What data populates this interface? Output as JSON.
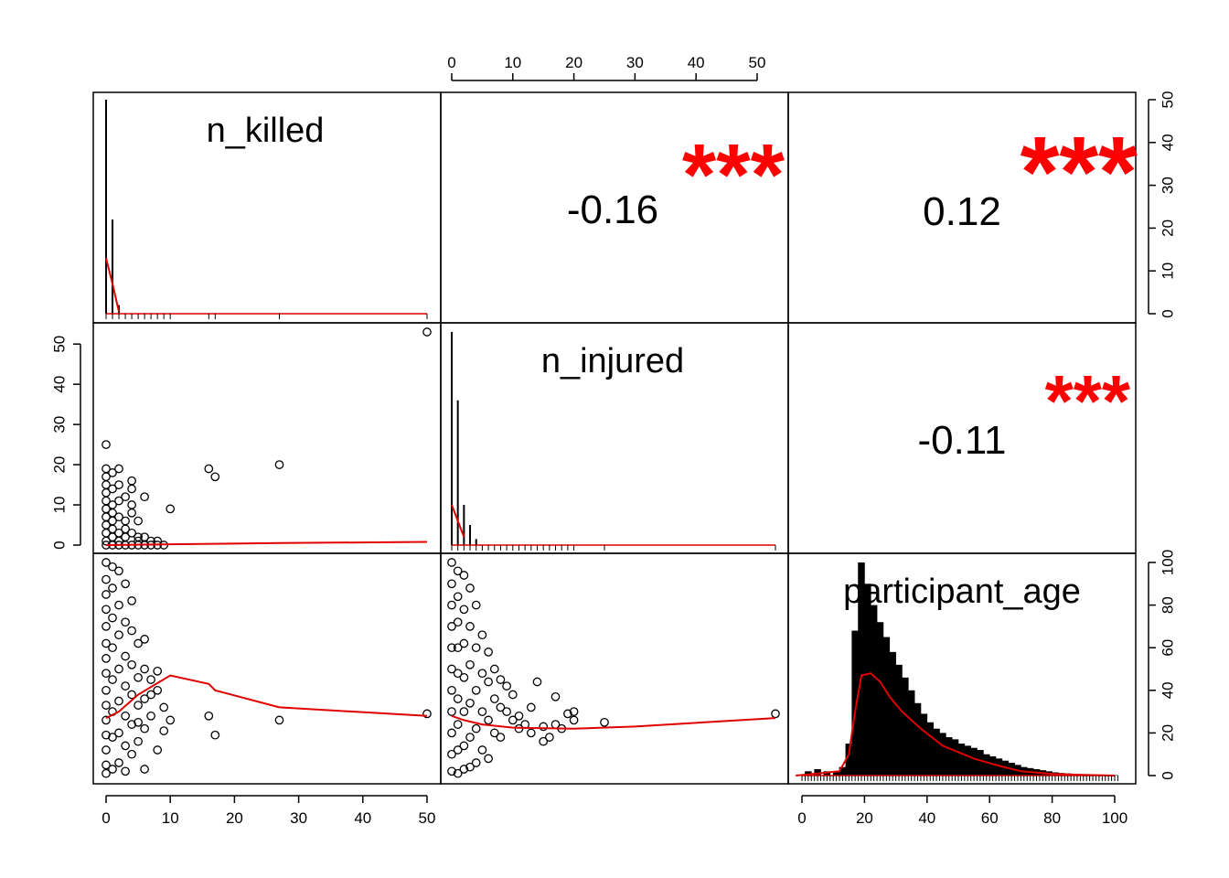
{
  "chart_data": {
    "type": "scatter",
    "variables": [
      "n_killed",
      "n_injured",
      "participant_age"
    ],
    "diagonal_labels": [
      "n_killed",
      "n_injured",
      "participant_age"
    ],
    "colors": {
      "line": "#e00000",
      "stars": "#ff0000",
      "points": "#000000"
    },
    "axes": {
      "n_killed": {
        "ticks": [
          "0",
          "10",
          "20",
          "30",
          "40",
          "50"
        ],
        "range": [
          0,
          50
        ]
      },
      "n_injured": {
        "ticks": [
          "0",
          "10",
          "20",
          "30",
          "40",
          "50"
        ],
        "range": [
          0,
          53
        ]
      },
      "participant_age": {
        "ticks": [
          "0",
          "20",
          "40",
          "60",
          "80",
          "100"
        ],
        "range": [
          0,
          100
        ]
      }
    },
    "correlations": [
      {
        "pair": [
          "n_killed",
          "n_injured"
        ],
        "value": "-0.16",
        "stars": "***"
      },
      {
        "pair": [
          "n_killed",
          "participant_age"
        ],
        "value": "0.12",
        "stars": "***"
      },
      {
        "pair": [
          "n_injured",
          "participant_age"
        ],
        "value": "-0.11",
        "stars": "***"
      }
    ],
    "histograms": {
      "n_killed": {
        "bars": [
          [
            0,
            50
          ],
          [
            1,
            22
          ],
          [
            2,
            2
          ]
        ],
        "density": [
          [
            0,
            13
          ],
          [
            1,
            7
          ],
          [
            2,
            0.5
          ]
        ]
      },
      "n_injured": {
        "bars": [
          [
            0,
            53
          ],
          [
            1,
            36
          ],
          [
            2,
            10
          ],
          [
            3,
            5
          ],
          [
            4,
            1.5
          ]
        ],
        "density": [
          [
            0,
            10
          ],
          [
            1,
            6
          ],
          [
            2,
            2
          ]
        ]
      },
      "participant_age": {
        "bars": [
          [
            2,
            2
          ],
          [
            5,
            3
          ],
          [
            8,
            2
          ],
          [
            11,
            2
          ],
          [
            13,
            4
          ],
          [
            15,
            15
          ],
          [
            17,
            68
          ],
          [
            19,
            100
          ],
          [
            21,
            90
          ],
          [
            23,
            80
          ],
          [
            25,
            72
          ],
          [
            27,
            65
          ],
          [
            29,
            58
          ],
          [
            31,
            52
          ],
          [
            33,
            46
          ],
          [
            35,
            40
          ],
          [
            37,
            34
          ],
          [
            39,
            29
          ],
          [
            41,
            25
          ],
          [
            43,
            22
          ],
          [
            45,
            20
          ],
          [
            47,
            18
          ],
          [
            49,
            17
          ],
          [
            51,
            15
          ],
          [
            53,
            14
          ],
          [
            55,
            13
          ],
          [
            57,
            12
          ],
          [
            59,
            10
          ],
          [
            61,
            9
          ],
          [
            63,
            8
          ],
          [
            65,
            7
          ],
          [
            67,
            6
          ],
          [
            69,
            5
          ],
          [
            71,
            4
          ],
          [
            73,
            3.5
          ],
          [
            75,
            3
          ],
          [
            77,
            2.5
          ],
          [
            79,
            2
          ],
          [
            81,
            1.5
          ],
          [
            83,
            1.2
          ],
          [
            85,
            1
          ],
          [
            88,
            0.6
          ],
          [
            92,
            0.4
          ],
          [
            96,
            0.3
          ],
          [
            100,
            0.2
          ]
        ],
        "density": [
          [
            -2,
            0
          ],
          [
            5,
            1
          ],
          [
            12,
            2
          ],
          [
            15,
            10
          ],
          [
            17,
            30
          ],
          [
            19,
            47
          ],
          [
            22,
            48
          ],
          [
            25,
            44
          ],
          [
            28,
            37
          ],
          [
            32,
            30
          ],
          [
            38,
            22
          ],
          [
            45,
            14
          ],
          [
            55,
            8
          ],
          [
            62,
            5
          ],
          [
            70,
            2
          ],
          [
            80,
            0.8
          ],
          [
            90,
            0.3
          ],
          [
            100,
            0
          ]
        ]
      }
    },
    "scatter_points": {
      "n_injured_vs_n_killed": [
        [
          0,
          25
        ],
        [
          0,
          19
        ],
        [
          0,
          17
        ],
        [
          0,
          15
        ],
        [
          0,
          13
        ],
        [
          0,
          11
        ],
        [
          0,
          9
        ],
        [
          0,
          7
        ],
        [
          0,
          5
        ],
        [
          0,
          3
        ],
        [
          0,
          1
        ],
        [
          0,
          0
        ],
        [
          1,
          18
        ],
        [
          1,
          14
        ],
        [
          1,
          10
        ],
        [
          1,
          8
        ],
        [
          1,
          6
        ],
        [
          1,
          4
        ],
        [
          1,
          2
        ],
        [
          1,
          0
        ],
        [
          2,
          19
        ],
        [
          2,
          15
        ],
        [
          2,
          11
        ],
        [
          2,
          7
        ],
        [
          2,
          3
        ],
        [
          2,
          1
        ],
        [
          2,
          0
        ],
        [
          3,
          12
        ],
        [
          3,
          6
        ],
        [
          3,
          4
        ],
        [
          3,
          2
        ],
        [
          3,
          0
        ],
        [
          4,
          16
        ],
        [
          4,
          14
        ],
        [
          4,
          10
        ],
        [
          4,
          8
        ],
        [
          4,
          3
        ],
        [
          4,
          0
        ],
        [
          5,
          6
        ],
        [
          5,
          2
        ],
        [
          5,
          1
        ],
        [
          5,
          0
        ],
        [
          6,
          12
        ],
        [
          6,
          2
        ],
        [
          6,
          0
        ],
        [
          7,
          1
        ],
        [
          7,
          0
        ],
        [
          8,
          1
        ],
        [
          8,
          0
        ],
        [
          9,
          0
        ],
        [
          10,
          9
        ],
        [
          16,
          19
        ],
        [
          17,
          17
        ],
        [
          27,
          20
        ],
        [
          50,
          53
        ]
      ],
      "n_injured_vs_n_killed_loess": [
        [
          0,
          0
        ],
        [
          10,
          0.2
        ],
        [
          27,
          0.5
        ],
        [
          50,
          0.8
        ]
      ],
      "age_vs_n_killed": [
        [
          0,
          100
        ],
        [
          0,
          92
        ],
        [
          0,
          85
        ],
        [
          0,
          78
        ],
        [
          0,
          70
        ],
        [
          0,
          62
        ],
        [
          0,
          55
        ],
        [
          0,
          48
        ],
        [
          0,
          40
        ],
        [
          0,
          33
        ],
        [
          0,
          26
        ],
        [
          0,
          19
        ],
        [
          0,
          12
        ],
        [
          0,
          5
        ],
        [
          0,
          1
        ],
        [
          1,
          98
        ],
        [
          1,
          88
        ],
        [
          1,
          74
        ],
        [
          1,
          60
        ],
        [
          1,
          45
        ],
        [
          1,
          30
        ],
        [
          1,
          18
        ],
        [
          1,
          3
        ],
        [
          2,
          96
        ],
        [
          2,
          80
        ],
        [
          2,
          66
        ],
        [
          2,
          50
        ],
        [
          2,
          35
        ],
        [
          2,
          20
        ],
        [
          2,
          6
        ],
        [
          3,
          90
        ],
        [
          3,
          72
        ],
        [
          3,
          56
        ],
        [
          3,
          42
        ],
        [
          3,
          28
        ],
        [
          3,
          14
        ],
        [
          3,
          2
        ],
        [
          4,
          82
        ],
        [
          4,
          68
        ],
        [
          4,
          52
        ],
        [
          4,
          38
        ],
        [
          4,
          24
        ],
        [
          4,
          10
        ],
        [
          5,
          62
        ],
        [
          5,
          46
        ],
        [
          5,
          33
        ],
        [
          5,
          25
        ],
        [
          5,
          16
        ],
        [
          6,
          64
        ],
        [
          6,
          50
        ],
        [
          6,
          36
        ],
        [
          6,
          22
        ],
        [
          6,
          3
        ],
        [
          7,
          45
        ],
        [
          7,
          38
        ],
        [
          7,
          28
        ],
        [
          8,
          49
        ],
        [
          8,
          40
        ],
        [
          8,
          12
        ],
        [
          9,
          32
        ],
        [
          9,
          21
        ],
        [
          10,
          26
        ],
        [
          16,
          28
        ],
        [
          17,
          19
        ],
        [
          27,
          26
        ],
        [
          50,
          29
        ]
      ],
      "age_vs_n_killed_loess": [
        [
          0,
          27
        ],
        [
          2,
          30
        ],
        [
          5,
          38
        ],
        [
          10,
          47
        ],
        [
          16,
          43
        ],
        [
          17,
          40
        ],
        [
          27,
          32
        ],
        [
          50,
          28
        ]
      ],
      "age_vs_n_injured": [
        [
          0,
          100
        ],
        [
          0,
          90
        ],
        [
          0,
          80
        ],
        [
          0,
          70
        ],
        [
          0,
          60
        ],
        [
          0,
          50
        ],
        [
          0,
          40
        ],
        [
          0,
          30
        ],
        [
          0,
          20
        ],
        [
          0,
          10
        ],
        [
          0,
          2
        ],
        [
          1,
          96
        ],
        [
          1,
          84
        ],
        [
          1,
          72
        ],
        [
          1,
          60
        ],
        [
          1,
          48
        ],
        [
          1,
          36
        ],
        [
          1,
          24
        ],
        [
          1,
          12
        ],
        [
          1,
          1
        ],
        [
          2,
          94
        ],
        [
          2,
          78
        ],
        [
          2,
          62
        ],
        [
          2,
          46
        ],
        [
          2,
          30
        ],
        [
          2,
          14
        ],
        [
          2,
          3
        ],
        [
          3,
          88
        ],
        [
          3,
          70
        ],
        [
          3,
          52
        ],
        [
          3,
          34
        ],
        [
          3,
          18
        ],
        [
          3,
          4
        ],
        [
          4,
          80
        ],
        [
          4,
          60
        ],
        [
          4,
          40
        ],
        [
          4,
          22
        ],
        [
          4,
          6
        ],
        [
          5,
          66
        ],
        [
          5,
          48
        ],
        [
          5,
          30
        ],
        [
          5,
          12
        ],
        [
          6,
          58
        ],
        [
          6,
          44
        ],
        [
          6,
          26
        ],
        [
          6,
          8
        ],
        [
          7,
          50
        ],
        [
          7,
          36
        ],
        [
          7,
          20
        ],
        [
          8,
          45
        ],
        [
          8,
          32
        ],
        [
          8,
          18
        ],
        [
          9,
          42
        ],
        [
          9,
          30
        ],
        [
          10,
          38
        ],
        [
          10,
          26
        ],
        [
          11,
          28
        ],
        [
          11,
          22
        ],
        [
          12,
          24
        ],
        [
          13,
          32
        ],
        [
          13,
          20
        ],
        [
          14,
          44
        ],
        [
          15,
          23
        ],
        [
          15,
          16
        ],
        [
          16,
          18
        ],
        [
          17,
          24
        ],
        [
          17,
          37
        ],
        [
          18,
          22
        ],
        [
          19,
          29
        ],
        [
          20,
          26
        ],
        [
          20,
          30
        ],
        [
          25,
          25
        ],
        [
          53,
          29
        ]
      ],
      "age_vs_n_injured_loess": [
        [
          0,
          28
        ],
        [
          2,
          26
        ],
        [
          5,
          24
        ],
        [
          10,
          22.5
        ],
        [
          20,
          22
        ],
        [
          30,
          23
        ],
        [
          53,
          27
        ]
      ]
    }
  }
}
